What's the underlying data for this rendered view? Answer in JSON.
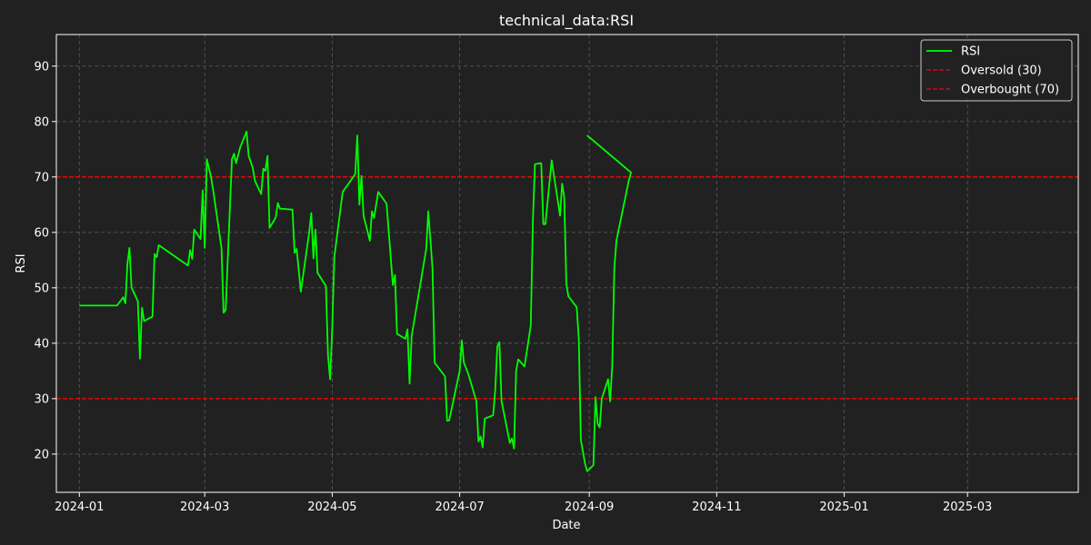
{
  "chart_data": {
    "type": "line",
    "title": "technical_data:RSI",
    "xlabel": "Date",
    "ylabel": "RSI",
    "x_ticks": [
      "2024-01",
      "2024-03",
      "2024-05",
      "2024-07",
      "2024-09",
      "2024-11",
      "2025-01",
      "2025-03"
    ],
    "y_ticks": [
      20,
      30,
      40,
      50,
      60,
      70,
      80,
      90
    ],
    "xlim": [
      "2023-12-21",
      "2025-04-23"
    ],
    "ylim": [
      13.1,
      95.7
    ],
    "grid": true,
    "legend_position": "top-right",
    "colors": {
      "background": "#212121",
      "line": "#00ff00",
      "threshold": "#ff0000",
      "grid": "#555555",
      "axis": "#ffffff"
    },
    "thresholds": [
      {
        "name": "Oversold (30)",
        "value": 30
      },
      {
        "name": "Overbought (70)",
        "value": 70
      }
    ],
    "series": [
      {
        "name": "RSI",
        "points": [
          [
            "2024-01-01",
            46.8
          ],
          [
            "2024-01-19",
            46.8
          ],
          [
            "2024-01-21",
            47.8
          ],
          [
            "2024-01-22",
            48.3
          ],
          [
            "2024-01-23",
            47.2
          ],
          [
            "2024-01-24",
            54.4
          ],
          [
            "2024-01-25",
            57.2
          ],
          [
            "2024-01-26",
            50.0
          ],
          [
            "2024-01-29",
            47.6
          ],
          [
            "2024-01-30",
            37.2
          ],
          [
            "2024-01-31",
            46.4
          ],
          [
            "2024-02-01",
            44.0
          ],
          [
            "2024-02-05",
            44.8
          ],
          [
            "2024-02-06",
            56.1
          ],
          [
            "2024-02-07",
            55.5
          ],
          [
            "2024-02-08",
            57.7
          ],
          [
            "2024-02-22",
            54.0
          ],
          [
            "2024-02-23",
            56.8
          ],
          [
            "2024-02-24",
            55.2
          ],
          [
            "2024-02-25",
            60.5
          ],
          [
            "2024-02-28",
            58.8
          ],
          [
            "2024-02-29",
            67.6
          ],
          [
            "2024-03-01",
            57.2
          ],
          [
            "2024-03-02",
            73.2
          ],
          [
            "2024-03-04",
            70.0
          ],
          [
            "2024-03-05",
            67.7
          ],
          [
            "2024-03-09",
            57.2
          ],
          [
            "2024-03-10",
            45.5
          ],
          [
            "2024-03-11",
            46.0
          ],
          [
            "2024-03-14",
            73.2
          ],
          [
            "2024-03-15",
            74.2
          ],
          [
            "2024-03-16",
            72.5
          ],
          [
            "2024-03-18",
            75.4
          ],
          [
            "2024-03-21",
            78.2
          ],
          [
            "2024-03-22",
            73.8
          ],
          [
            "2024-03-24",
            71.6
          ],
          [
            "2024-03-25",
            69.3
          ],
          [
            "2024-03-28",
            66.9
          ],
          [
            "2024-03-29",
            71.5
          ],
          [
            "2024-03-30",
            71.1
          ],
          [
            "2024-03-31",
            73.8
          ],
          [
            "2024-04-01",
            60.8
          ],
          [
            "2024-04-04",
            62.7
          ],
          [
            "2024-04-05",
            65.3
          ],
          [
            "2024-04-06",
            64.3
          ],
          [
            "2024-04-12",
            64.1
          ],
          [
            "2024-04-13",
            56.3
          ],
          [
            "2024-04-14",
            57.0
          ],
          [
            "2024-04-16",
            49.3
          ],
          [
            "2024-04-20",
            60.0
          ],
          [
            "2024-04-21",
            63.5
          ],
          [
            "2024-04-22",
            55.3
          ],
          [
            "2024-04-23",
            60.5
          ],
          [
            "2024-04-24",
            52.7
          ],
          [
            "2024-04-28",
            50.3
          ],
          [
            "2024-04-29",
            37.8
          ],
          [
            "2024-04-30",
            33.5
          ],
          [
            "2024-05-01",
            42.5
          ],
          [
            "2024-05-02",
            55.5
          ],
          [
            "2024-05-06",
            67.3
          ],
          [
            "2024-05-12",
            70.5
          ],
          [
            "2024-05-13",
            77.5
          ],
          [
            "2024-05-14",
            65.0
          ],
          [
            "2024-05-15",
            70.2
          ],
          [
            "2024-05-16",
            63.0
          ],
          [
            "2024-05-19",
            58.5
          ],
          [
            "2024-05-20",
            63.8
          ],
          [
            "2024-05-21",
            62.6
          ],
          [
            "2024-05-23",
            67.3
          ],
          [
            "2024-05-27",
            65.2
          ],
          [
            "2024-05-30",
            50.5
          ],
          [
            "2024-05-31",
            52.3
          ],
          [
            "2024-06-01",
            41.7
          ],
          [
            "2024-06-05",
            40.8
          ],
          [
            "2024-06-06",
            42.5
          ],
          [
            "2024-06-07",
            32.7
          ],
          [
            "2024-06-08",
            41.3
          ],
          [
            "2024-06-15",
            57.0
          ],
          [
            "2024-06-16",
            63.8
          ],
          [
            "2024-06-18",
            53.5
          ],
          [
            "2024-06-19",
            36.5
          ],
          [
            "2024-06-24",
            34.0
          ],
          [
            "2024-06-25",
            26.0
          ],
          [
            "2024-06-26",
            26.1
          ],
          [
            "2024-07-01",
            35.0
          ],
          [
            "2024-07-02",
            40.5
          ],
          [
            "2024-07-03",
            36.5
          ],
          [
            "2024-07-05",
            34.6
          ],
          [
            "2024-07-09",
            29.5
          ],
          [
            "2024-07-10",
            22.3
          ],
          [
            "2024-07-11",
            23.2
          ],
          [
            "2024-07-12",
            21.2
          ],
          [
            "2024-07-13",
            26.4
          ],
          [
            "2024-07-17",
            27.0
          ],
          [
            "2024-07-18",
            31.5
          ],
          [
            "2024-07-19",
            39.4
          ],
          [
            "2024-07-20",
            40.2
          ],
          [
            "2024-07-21",
            29.6
          ],
          [
            "2024-07-25",
            22.0
          ],
          [
            "2024-07-26",
            22.8
          ],
          [
            "2024-07-27",
            21.0
          ],
          [
            "2024-07-28",
            35.0
          ],
          [
            "2024-07-29",
            37.1
          ],
          [
            "2024-08-01",
            35.8
          ],
          [
            "2024-08-04",
            43.2
          ],
          [
            "2024-08-05",
            62.0
          ],
          [
            "2024-08-06",
            72.3
          ],
          [
            "2024-08-09",
            72.5
          ],
          [
            "2024-08-10",
            61.5
          ],
          [
            "2024-08-11",
            61.5
          ],
          [
            "2024-08-14",
            73.0
          ],
          [
            "2024-08-18",
            63.0
          ],
          [
            "2024-08-19",
            68.8
          ],
          [
            "2024-08-20",
            66.3
          ],
          [
            "2024-08-21",
            50.8
          ],
          [
            "2024-08-22",
            48.5
          ],
          [
            "2024-08-26",
            46.5
          ],
          [
            "2024-08-27",
            41.0
          ],
          [
            "2024-08-28",
            22.5
          ],
          [
            "2024-08-30",
            18.3
          ],
          [
            "2024-08-31",
            16.9
          ],
          [
            "2024-09-03",
            18.0
          ],
          [
            "2024-09-04",
            30.3
          ],
          [
            "2024-09-05",
            25.5
          ],
          [
            "2024-09-06",
            24.8
          ],
          [
            "2024-09-07",
            30.0
          ],
          [
            "2024-09-10",
            33.5
          ],
          [
            "2024-09-11",
            29.5
          ],
          [
            "2024-09-12",
            36.0
          ],
          [
            "2024-09-13",
            53.5
          ],
          [
            "2024-09-14",
            58.5
          ],
          [
            "2024-09-20",
            69.5
          ],
          [
            "2024-09-21",
            70.8
          ],
          [
            "2024-08-31",
            77.5
          ]
        ]
      }
    ]
  }
}
